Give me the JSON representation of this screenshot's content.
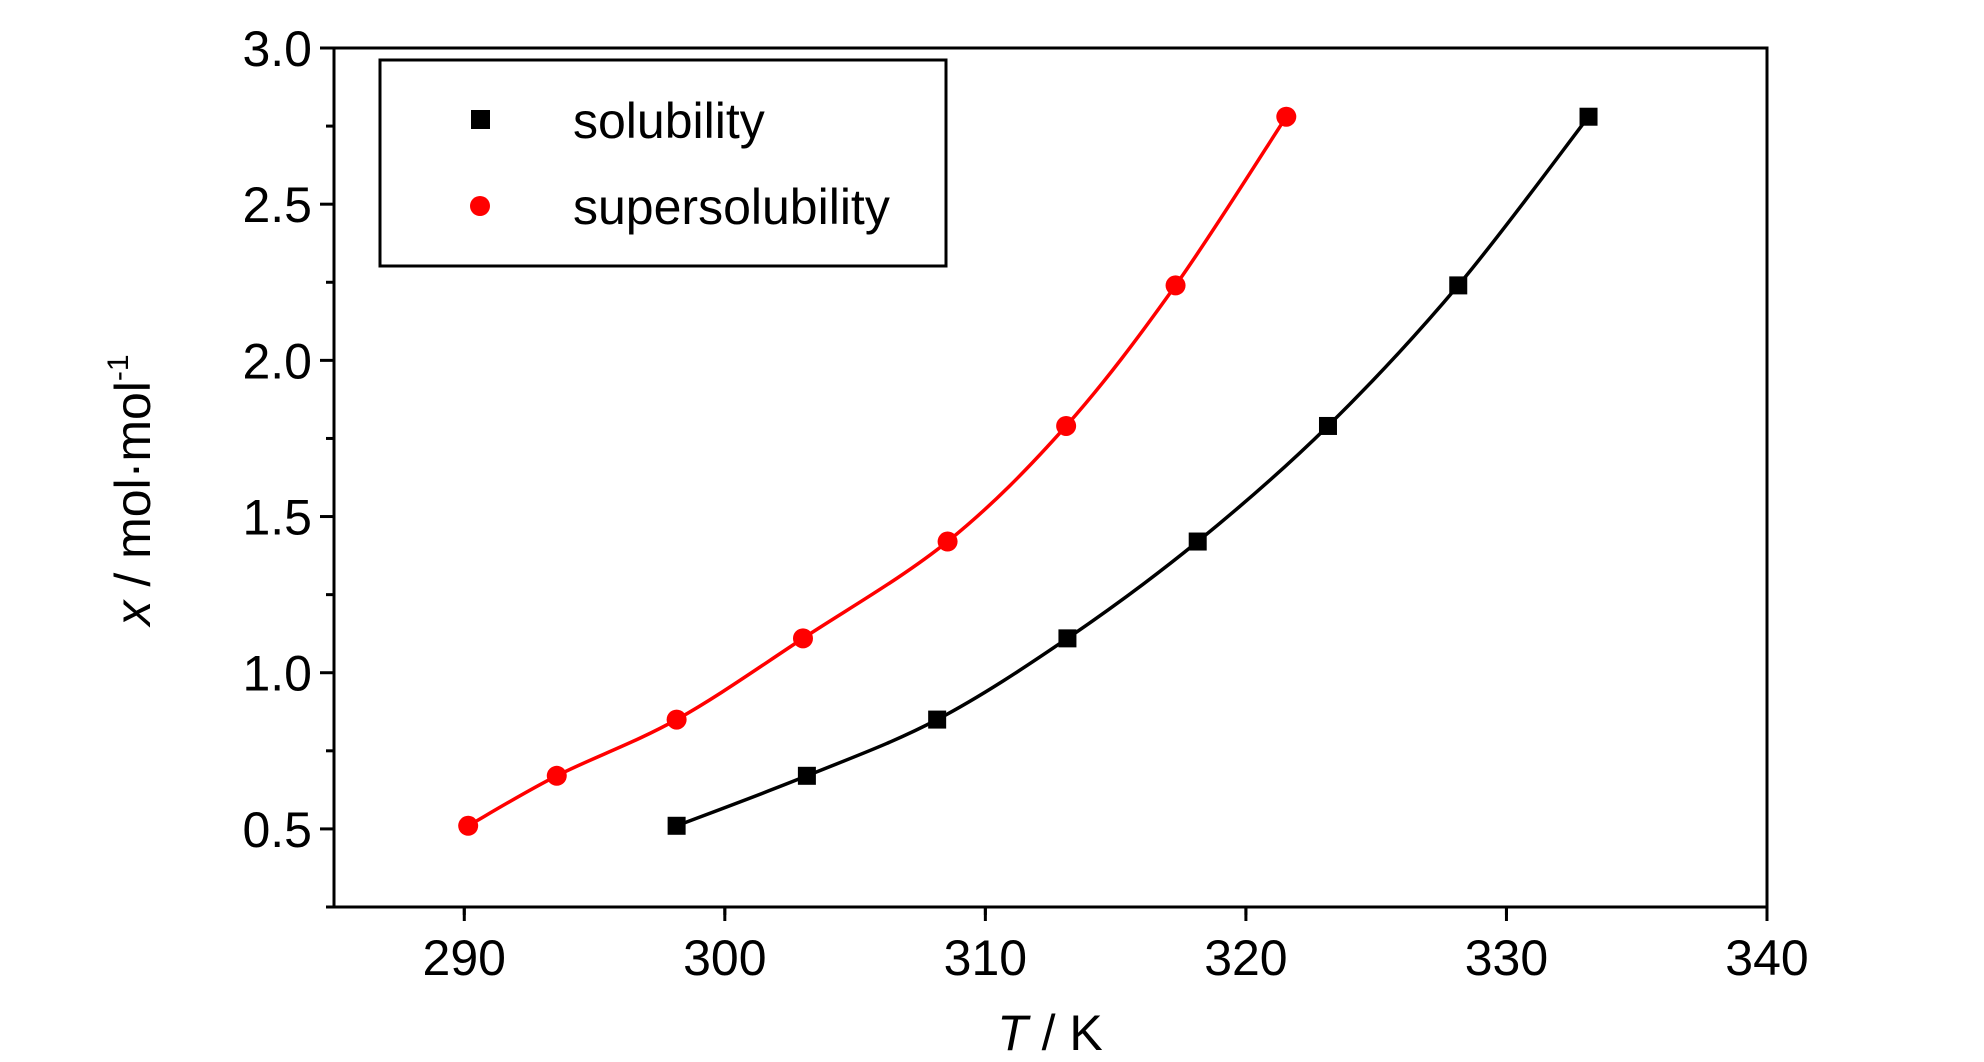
{
  "chart_data": {
    "type": "scatter",
    "xlabel": {
      "var": "T",
      "unit": " / K"
    },
    "ylabel": {
      "var": "x",
      "unit": " / mol·mol",
      "sup": "-1"
    },
    "xlim": [
      285,
      340
    ],
    "ylim": [
      0.25,
      3.0
    ],
    "xticks": [
      290,
      300,
      310,
      320,
      330,
      340
    ],
    "yticks": [
      0.5,
      1.0,
      1.5,
      2.0,
      2.5,
      3.0
    ],
    "xtick_labels": [
      "290",
      "300",
      "310",
      "320",
      "330",
      "340"
    ],
    "ytick_labels": [
      "0.5",
      "1.0",
      "1.5",
      "2.0",
      "2.5",
      "3.0"
    ],
    "legend_position": "top-left",
    "series": [
      {
        "name": "solubility",
        "color": "#000000",
        "marker": "square",
        "x": [
          298.15,
          303.15,
          308.15,
          313.15,
          318.15,
          323.15,
          328.15,
          333.15
        ],
        "y": [
          0.51,
          0.67,
          0.85,
          1.11,
          1.42,
          1.79,
          2.24,
          2.78
        ]
      },
      {
        "name": "supersolubility",
        "color": "#ff0000",
        "marker": "circle",
        "x": [
          290.15,
          293.55,
          298.15,
          303.0,
          308.55,
          313.1,
          317.3,
          321.55
        ],
        "y": [
          0.51,
          0.67,
          0.85,
          1.11,
          1.42,
          1.79,
          2.24,
          2.78
        ]
      }
    ]
  }
}
